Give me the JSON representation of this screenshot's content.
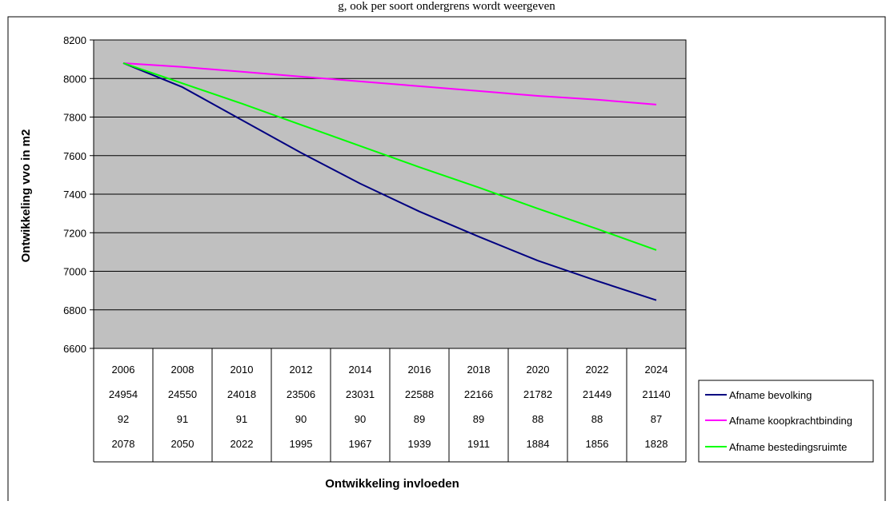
{
  "page": {
    "top_caption": "g, ook per soort ondergrens wordt weergeven"
  },
  "chart_data": {
    "type": "line",
    "title": "",
    "xlabel": "Ontwikkeling invloeden",
    "ylabel": "Ontwikkeling vvo in m2",
    "ylim": [
      6600,
      8200
    ],
    "yticks": [
      6600,
      6800,
      7000,
      7200,
      7400,
      7600,
      7800,
      8000,
      8200
    ],
    "grid": true,
    "plot_background": "#c0c0c0",
    "legend_position": "right",
    "categories": [
      "2006",
      "2008",
      "2010",
      "2012",
      "2014",
      "2016",
      "2018",
      "2020",
      "2022",
      "2024"
    ],
    "data_table": [
      [
        "2006",
        "2008",
        "2010",
        "2012",
        "2014",
        "2016",
        "2018",
        "2020",
        "2022",
        "2024"
      ],
      [
        "24954",
        "24550",
        "24018",
        "23506",
        "23031",
        "22588",
        "22166",
        "21782",
        "21449",
        "21140"
      ],
      [
        "92",
        "91",
        "91",
        "90",
        "90",
        "89",
        "89",
        "88",
        "88",
        "87"
      ],
      [
        "2078",
        "2050",
        "2022",
        "1995",
        "1967",
        "1939",
        "1911",
        "1884",
        "1856",
        "1828"
      ]
    ],
    "series": [
      {
        "name": "Afname bevolking",
        "color": "#000080",
        "values": [
          8080,
          7955,
          7785,
          7615,
          7455,
          7310,
          7180,
          7055,
          6950,
          6850
        ]
      },
      {
        "name": "Afname koopkrachtbinding",
        "color": "#ff00ff",
        "values": [
          8080,
          8060,
          8035,
          8010,
          7985,
          7960,
          7935,
          7910,
          7890,
          7865
        ]
      },
      {
        "name": "Afname bestedingsruimte",
        "color": "#00ff00",
        "values": [
          8080,
          7975,
          7870,
          7760,
          7650,
          7540,
          7435,
          7325,
          7220,
          7110
        ]
      }
    ]
  }
}
